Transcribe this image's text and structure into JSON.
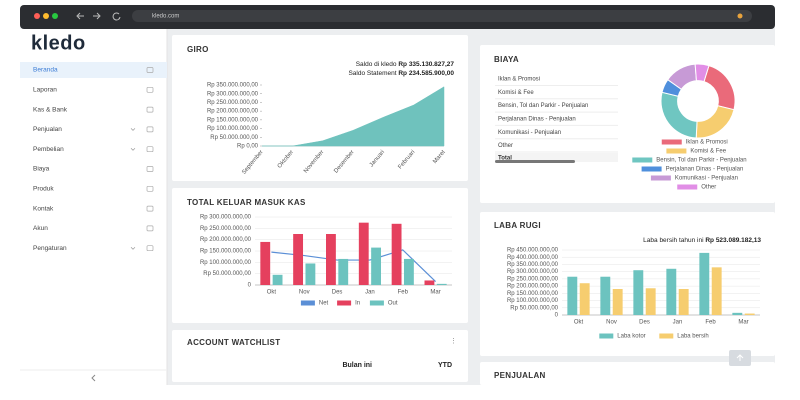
{
  "browser": {
    "url": "kledo.com"
  },
  "sidebar": {
    "logo": "kledo",
    "menu": [
      "Beranda",
      "Laporan",
      "Kas & Bank",
      "Penjualan",
      "Pembelian",
      "Biaya",
      "Produk",
      "Kontak",
      "Akun",
      "Pengaturan"
    ]
  },
  "chart_data": [
    {
      "type": "area",
      "title": "GIRO",
      "annotations": [
        {
          "label": "Saldo di kledo",
          "value": "Rp 335.130.827,27"
        },
        {
          "label": "Saldo Statement",
          "value": "Rp 234.585.900,00"
        }
      ],
      "categories": [
        "September",
        "Oktober",
        "November",
        "Desember",
        "Januari",
        "Februari",
        "Maret"
      ],
      "values": [
        0,
        0,
        30000000,
        90000000,
        165000000,
        235000000,
        340000000
      ],
      "color": "#6fc2bd",
      "ylim": [
        0,
        350000000
      ],
      "yticks": [
        {
          "value": 0,
          "label": "Rp 0,00"
        },
        {
          "value": 50000000,
          "label": "Rp 50.000.000,00"
        },
        {
          "value": 100000000,
          "label": "Rp 100.000.000,00"
        },
        {
          "value": 150000000,
          "label": "Rp 150.000.000,00"
        },
        {
          "value": 200000000,
          "label": "Rp 200.000.000,00"
        },
        {
          "value": 250000000,
          "label": "Rp 250.000.000,00"
        },
        {
          "value": 300000000,
          "label": "Rp 300.000.000,00"
        },
        {
          "value": 350000000,
          "label": "Rp 350.000.000,00"
        }
      ],
      "grid": false
    },
    {
      "type": "bar",
      "title": "TOTAL KELUAR MASUK KAS",
      "categories": [
        "Okt",
        "Nov",
        "Des",
        "Jan",
        "Feb",
        "Mar"
      ],
      "series": [
        {
          "name": "Net",
          "color": "#5b8fd6",
          "mark": "line",
          "values": [
            145000000,
            130000000,
            110000000,
            110000000,
            155000000,
            15000000
          ]
        },
        {
          "name": "In",
          "color": "#e5405e",
          "values": [
            190000000,
            225000000,
            225000000,
            275000000,
            270000000,
            20000000
          ]
        },
        {
          "name": "Out",
          "color": "#6cc3bf",
          "values": [
            45000000,
            95000000,
            115000000,
            165000000,
            115000000,
            5000000
          ]
        }
      ],
      "ylim": [
        0,
        300000000
      ],
      "yticks": [
        0,
        {
          "value": 50000000,
          "label": "Rp 50.000.000,00"
        },
        {
          "value": 100000000,
          "label": "Rp 100.000.000,00"
        },
        {
          "value": 150000000,
          "label": "Rp 150.000.000,00"
        },
        {
          "value": 200000000,
          "label": "Rp 200.000.000,00"
        },
        {
          "value": 250000000,
          "label": "Rp 250.000.000,00"
        },
        {
          "value": 300000000,
          "label": "Rp 300.000.000,00"
        }
      ],
      "grid": true
    },
    {
      "type": "pie",
      "title": "BIAYA",
      "categories": [
        "Iklan & Promosi",
        "Komisi & Fee",
        "Bensin, Tol dan Parkir - Penjualan",
        "Perjalanan Dinas - Penjualan",
        "Komunikasi - Penjualan",
        "Other"
      ],
      "values": [
        24,
        22,
        28,
        6,
        14,
        6
      ],
      "colors": [
        "#ea6a7a",
        "#f6cd6f",
        "#6fc6c1",
        "#4f8fdc",
        "#c79ad6",
        "#e18ee6"
      ],
      "total_label": "Total"
    },
    {
      "type": "bar",
      "title": "LABA RUGI",
      "annotations": [
        {
          "label": "Laba bersih tahun ini",
          "value": "Rp 523.089.182,13"
        }
      ],
      "categories": [
        "Okt",
        "Nov",
        "Des",
        "Jan",
        "Feb",
        "Mar"
      ],
      "series": [
        {
          "name": "Laba kotor",
          "color": "#6cc3bf",
          "values": [
            265000000,
            265000000,
            310000000,
            320000000,
            430000000,
            15000000
          ]
        },
        {
          "name": "Laba bersih",
          "color": "#f6cd6f",
          "values": [
            220000000,
            180000000,
            185000000,
            180000000,
            330000000,
            10000000
          ]
        }
      ],
      "ylim": [
        0,
        450000000
      ],
      "yticks": [
        0,
        {
          "value": 50000000,
          "label": "Rp 50.000.000,00"
        },
        {
          "value": 100000000,
          "label": "Rp 100.000.000,00"
        },
        {
          "value": 150000000,
          "label": "Rp 150.000.000,00"
        },
        {
          "value": 200000000,
          "label": "Rp 200.000.000,00"
        },
        {
          "value": 250000000,
          "label": "Rp 250.000.000,00"
        },
        {
          "value": 300000000,
          "label": "Rp 300.000.000,00"
        },
        {
          "value": 350000000,
          "label": "Rp 350.000.000,00"
        },
        {
          "value": 400000000,
          "label": "Rp 400.000.000,00"
        },
        {
          "value": 450000000,
          "label": "Rp 450.000.000,00"
        }
      ],
      "grid": true
    }
  ],
  "watchlist": {
    "title": "ACCOUNT WATCHLIST",
    "columns": [
      "Bulan ini",
      "YTD"
    ]
  },
  "penjualan": {
    "title": "PENJUALAN"
  }
}
